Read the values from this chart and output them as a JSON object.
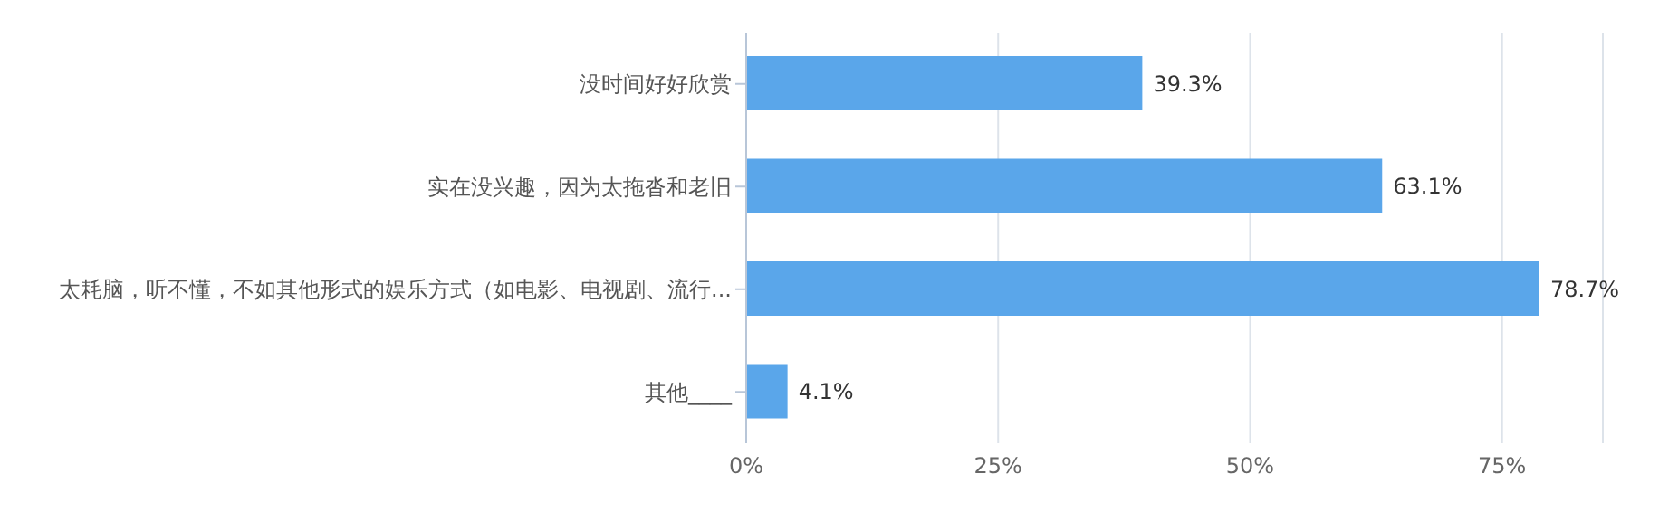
{
  "chart_data": {
    "type": "bar",
    "orientation": "horizontal",
    "categories": [
      "没时间好好欣赏",
      "实在没兴趣，因为太拖沓和老旧",
      "太耗脑，听不懂，不如其他形式的娱乐方式（如电影、电视剧、流行...",
      "其他____"
    ],
    "values": [
      39.3,
      63.1,
      78.7,
      4.1
    ],
    "value_labels": [
      "39.3%",
      "63.1%",
      "78.7%",
      "4.1%"
    ],
    "color": "#5aa6ea",
    "xlim": [
      0,
      85
    ],
    "xticks": [
      {
        "value": 0,
        "label": "0%"
      },
      {
        "value": 25,
        "label": "25%"
      },
      {
        "value": 50,
        "label": "50%"
      },
      {
        "value": 75,
        "label": "75%"
      }
    ],
    "grid": "x"
  }
}
